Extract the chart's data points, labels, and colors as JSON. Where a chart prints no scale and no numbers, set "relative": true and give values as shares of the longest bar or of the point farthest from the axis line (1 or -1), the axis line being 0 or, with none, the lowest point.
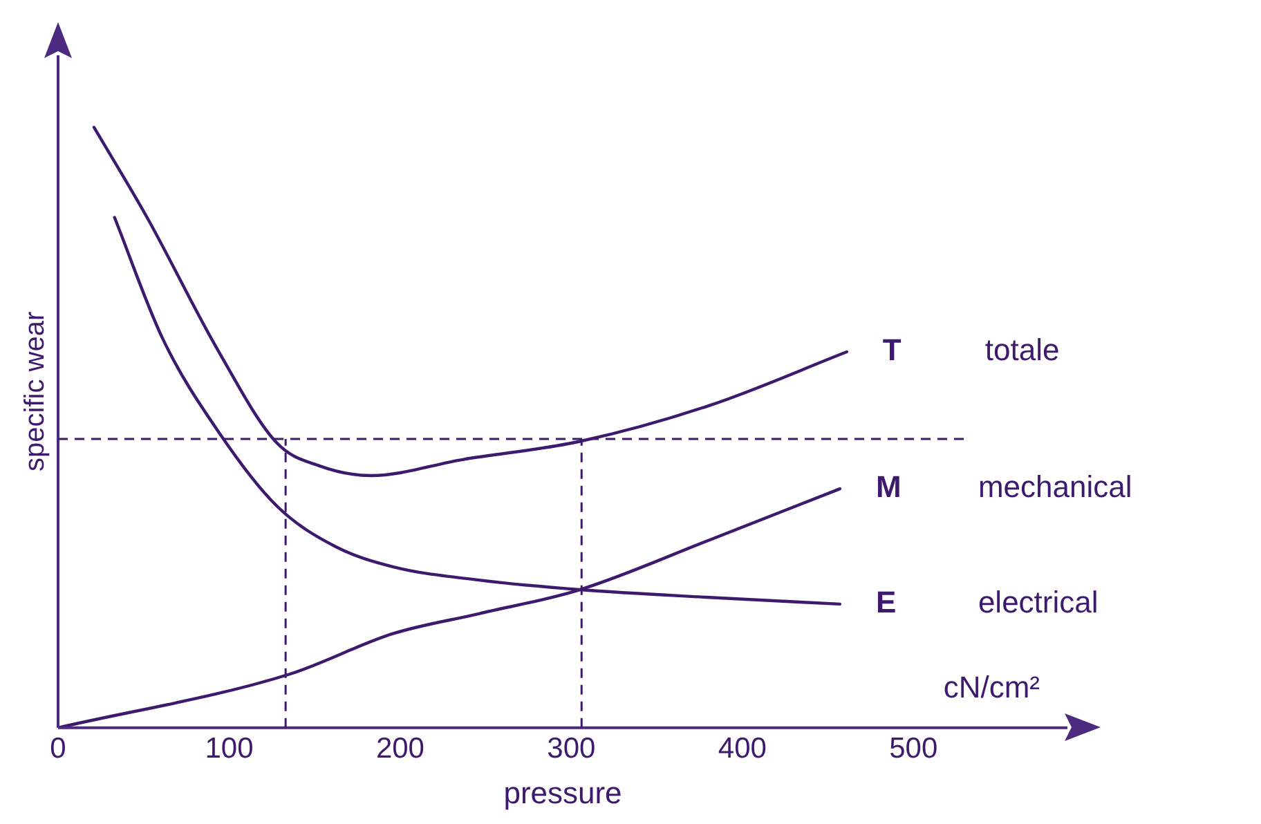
{
  "chart_data": {
    "type": "line",
    "relative": true,
    "xlabel": "pressure",
    "ylabel": "specific wear",
    "xlim": [
      0,
      590
    ],
    "xticks": [
      0,
      100,
      200,
      300,
      400,
      500
    ],
    "tick_labels": "x",
    "grid": false,
    "legend": false,
    "marker": "none",
    "line_style": "solid",
    "series": [
      {
        "name": "T",
        "color": "#3d1a6e",
        "x": [
          21,
          52,
          94,
          128,
          153,
          183,
          237,
          305,
          381,
          461
        ],
        "values": [
          1.0,
          0.85,
          0.626,
          0.474,
          0.436,
          0.42,
          0.447,
          0.477,
          0.537,
          0.626
        ]
      },
      {
        "name": "M",
        "color": "#3d1a6e",
        "x": [
          0,
          135,
          196,
          246,
          305,
          381,
          457
        ],
        "values": [
          0,
          0.089,
          0.157,
          0.19,
          0.23,
          0.313,
          0.398
        ]
      },
      {
        "name": "E",
        "color": "#3d1a6e",
        "x": [
          33,
          61,
          94,
          128,
          162,
          196,
          246,
          305,
          381,
          457
        ],
        "values": [
          0.85,
          0.649,
          0.492,
          0.369,
          0.302,
          0.268,
          0.246,
          0.23,
          0.217,
          0.206
        ]
      }
    ],
    "ref_lines": [
      {
        "axis": "y",
        "value": 0.481,
        "line_style": "dashed"
      },
      {
        "axis": "x",
        "value": 133,
        "line_style": "dashed"
      },
      {
        "axis": "x",
        "value": 306,
        "line_style": "dashed"
      }
    ],
    "annotations": [
      "totale",
      "mechanical",
      "electrical",
      "cN/cm²"
    ]
  }
}
